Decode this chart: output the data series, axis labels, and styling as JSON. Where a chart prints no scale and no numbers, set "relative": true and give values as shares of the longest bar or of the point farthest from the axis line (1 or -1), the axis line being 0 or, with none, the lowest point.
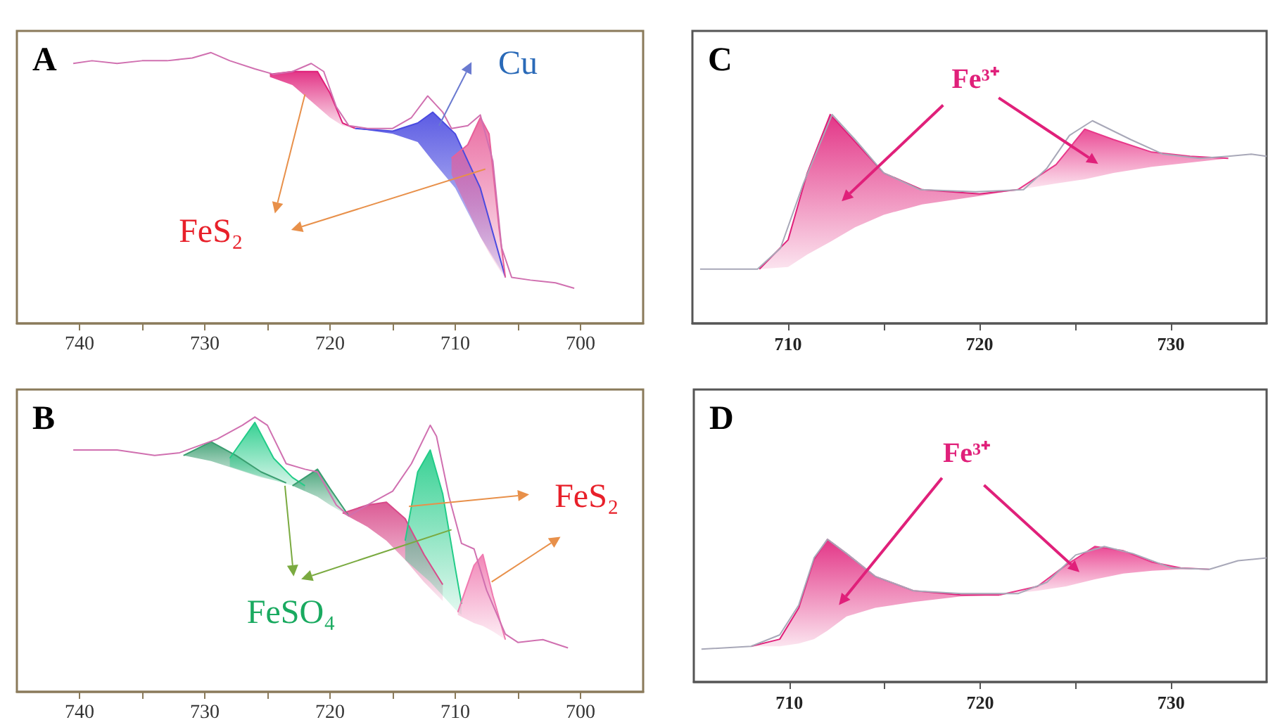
{
  "chart_data": [
    {
      "type": "line",
      "title": "A",
      "relative": true,
      "tick_labels": "x",
      "xlim": [
        745,
        695
      ],
      "xticks": [
        740,
        {
          "value": 735,
          "label": null
        },
        730,
        {
          "value": 725,
          "label": null
        },
        720,
        {
          "value": 715,
          "label": null
        },
        710,
        {
          "value": 705,
          "label": null
        },
        700
      ],
      "annotations": [
        "Cu",
        "FeS₂"
      ],
      "series": [
        {
          "type": "line",
          "color": "#e0207a",
          "x": [
            724.8,
            723,
            721,
            720,
            719,
            718
          ],
          "values": [
            0.92,
            0.93,
            0.93,
            0.85,
            0.74,
            0.72
          ],
          "upper": [
            0.92,
            0.93,
            0.93,
            0.85,
            0.74,
            0.72
          ],
          "lower": [
            0.91,
            0.88,
            0.8,
            0.76,
            0.73,
            0.72
          ]
        },
        {
          "type": "line",
          "color": "#4a4ae0",
          "x": [
            718,
            715,
            713,
            711.8,
            710,
            708,
            706
          ],
          "values": [
            0.72,
            0.71,
            0.74,
            0.78,
            0.7,
            0.5,
            0.17
          ],
          "upper": [
            0.72,
            0.71,
            0.74,
            0.78,
            0.7,
            0.5,
            0.17
          ],
          "lower": [
            0.72,
            0.7,
            0.67,
            0.6,
            0.5,
            0.32,
            0.17
          ]
        },
        {
          "type": "line",
          "color": "#e8609a",
          "x": [
            710.3,
            709,
            708,
            707.3,
            706.5,
            706
          ],
          "values": [
            0.61,
            0.66,
            0.76,
            0.7,
            0.35,
            0.17
          ],
          "upper": [
            0.61,
            0.66,
            0.76,
            0.7,
            0.35,
            0.17
          ],
          "lower": [
            0.55,
            0.42,
            0.32,
            0.26,
            0.2,
            0.17
          ]
        },
        {
          "type": "line",
          "color": "#d070b0",
          "x": [
            740.5,
            739,
            737,
            735,
            733,
            731,
            729.5,
            728,
            726,
            724.5,
            723,
            721.5,
            720.5,
            719.5,
            718.5,
            717,
            715,
            713.5,
            712.2,
            711,
            710.3,
            709,
            708,
            707,
            706.3,
            705.5,
            704,
            702,
            700.5
          ],
          "values": [
            0.96,
            0.97,
            0.96,
            0.97,
            0.97,
            0.98,
            1.0,
            0.97,
            0.94,
            0.92,
            0.93,
            0.96,
            0.93,
            0.8,
            0.73,
            0.72,
            0.72,
            0.76,
            0.84,
            0.78,
            0.72,
            0.73,
            0.77,
            0.6,
            0.28,
            0.17,
            0.16,
            0.15,
            0.13
          ]
        }
      ]
    },
    {
      "type": "line",
      "title": "C",
      "relative": true,
      "tick_labels": "x",
      "xlim": [
        705,
        735
      ],
      "xticks": [
        710,
        {
          "value": 715,
          "label": null
        },
        720,
        {
          "value": 725,
          "label": null
        },
        730
      ],
      "annotations": [
        "Fe³⁺"
      ],
      "series": [
        {
          "type": "line",
          "color": "#e0207a",
          "x": [
            708.5,
            710,
            711,
            712.2,
            713.5,
            715,
            717,
            720,
            722
          ],
          "values": [
            0.26,
            0.4,
            0.72,
            1.0,
            0.87,
            0.72,
            0.64,
            0.62,
            0.64
          ],
          "upper": [
            0.26,
            0.4,
            0.72,
            1.0,
            0.87,
            0.72,
            0.64,
            0.62,
            0.64
          ],
          "lower": [
            0.26,
            0.27,
            0.33,
            0.39,
            0.46,
            0.52,
            0.57,
            0.61,
            0.64
          ]
        },
        {
          "type": "line",
          "color": "#e8388a",
          "x": [
            722,
            724,
            725.5,
            727,
            729,
            731,
            733
          ],
          "values": [
            0.64,
            0.76,
            0.93,
            0.88,
            0.82,
            0.8,
            0.79
          ],
          "upper": [
            0.64,
            0.76,
            0.93,
            0.88,
            0.82,
            0.8,
            0.79
          ],
          "lower": [
            0.64,
            0.67,
            0.69,
            0.72,
            0.75,
            0.77,
            0.79
          ]
        },
        {
          "type": "line",
          "color": "#a8a8b8",
          "x": [
            705.4,
            708.4,
            709.6,
            710.8,
            712.3,
            713.5,
            715,
            716.9,
            719.8,
            722.3,
            723.5,
            724.7,
            725.9,
            727.9,
            729.6,
            731.5,
            733,
            734.2,
            735
          ],
          "values": [
            0.26,
            0.26,
            0.36,
            0.67,
            1.0,
            0.88,
            0.72,
            0.64,
            0.63,
            0.64,
            0.74,
            0.9,
            0.97,
            0.88,
            0.81,
            0.79,
            0.8,
            0.81,
            0.8
          ]
        }
      ]
    },
    {
      "type": "line",
      "title": "B",
      "relative": true,
      "tick_labels": "x",
      "xlim": [
        745,
        695
      ],
      "xticks": [
        740,
        {
          "value": 735,
          "label": null
        },
        730,
        {
          "value": 725,
          "label": null
        },
        720,
        {
          "value": 715,
          "label": null
        },
        710,
        {
          "value": 705,
          "label": null
        },
        700
      ],
      "annotations": [
        "FeS₂",
        "FeSO₄"
      ],
      "series": [
        {
          "type": "line",
          "color": "#3a9e70",
          "x": [
            731.7,
            729.5,
            727.5,
            725.5,
            723.5
          ],
          "values": [
            0.86,
            0.91,
            0.86,
            0.8,
            0.76
          ],
          "upper": [
            0.86,
            0.91,
            0.86,
            0.8,
            0.76
          ],
          "lower": [
            0.86,
            0.84,
            0.81,
            0.78,
            0.76
          ]
        },
        {
          "type": "line",
          "color": "#22cc88",
          "x": [
            728,
            726,
            724.5,
            723,
            722
          ],
          "values": [
            0.85,
            0.98,
            0.85,
            0.78,
            0.75
          ],
          "upper": [
            0.85,
            0.98,
            0.85,
            0.78,
            0.75
          ],
          "lower": [
            0.82,
            0.79,
            0.77,
            0.75,
            0.73
          ]
        },
        {
          "type": "line",
          "color": "#3a9e70",
          "x": [
            723,
            721,
            720,
            718.5
          ],
          "values": [
            0.75,
            0.81,
            0.74,
            0.64
          ],
          "upper": [
            0.75,
            0.81,
            0.74,
            0.64
          ],
          "lower": [
            0.75,
            0.71,
            0.68,
            0.64
          ]
        },
        {
          "type": "line",
          "color": "#d84a8a",
          "x": [
            719,
            717,
            715.5,
            714,
            712.5,
            711
          ],
          "values": [
            0.65,
            0.68,
            0.69,
            0.63,
            0.5,
            0.39
          ],
          "upper": [
            0.65,
            0.68,
            0.69,
            0.63,
            0.5,
            0.39
          ],
          "lower": [
            0.65,
            0.6,
            0.55,
            0.48,
            0.4,
            0.33
          ]
        },
        {
          "type": "line",
          "color": "#22cc88",
          "x": [
            714,
            713,
            712,
            711,
            710,
            709.5
          ],
          "values": [
            0.55,
            0.8,
            0.88,
            0.72,
            0.45,
            0.32
          ],
          "upper": [
            0.55,
            0.8,
            0.88,
            0.72,
            0.45,
            0.32
          ],
          "lower": [
            0.48,
            0.44,
            0.4,
            0.35,
            0.3,
            0.28
          ]
        },
        {
          "type": "line",
          "color": "#f07ab0",
          "x": [
            709.8,
            708.5,
            707.8,
            707,
            706
          ],
          "values": [
            0.29,
            0.46,
            0.5,
            0.35,
            0.19
          ],
          "upper": [
            0.29,
            0.46,
            0.5,
            0.35,
            0.19
          ],
          "lower": [
            0.28,
            0.25,
            0.24,
            0.22,
            0.19
          ]
        },
        {
          "type": "line",
          "color": "#d070b0",
          "x": [
            740.5,
            737,
            734,
            732,
            729,
            727,
            726,
            725,
            723.5,
            722,
            721,
            719.5,
            718.5,
            717,
            715,
            713.5,
            712,
            711.5,
            710.5,
            709.5,
            708.5,
            707.5,
            706,
            705,
            703,
            701
          ],
          "values": [
            0.88,
            0.88,
            0.86,
            0.87,
            0.92,
            0.97,
            1.0,
            0.97,
            0.83,
            0.81,
            0.8,
            0.68,
            0.64,
            0.68,
            0.73,
            0.83,
            0.97,
            0.93,
            0.71,
            0.54,
            0.52,
            0.37,
            0.21,
            0.18,
            0.19,
            0.16
          ]
        }
      ]
    },
    {
      "type": "line",
      "title": "D",
      "relative": true,
      "tick_labels": "x",
      "xlim": [
        705,
        735
      ],
      "xticks": [
        710,
        {
          "value": 715,
          "label": null
        },
        720,
        {
          "value": 725,
          "label": null
        },
        730
      ],
      "annotations": [
        "Fe³⁺"
      ],
      "series": [
        {
          "type": "line",
          "color": "#e0207a",
          "x": [
            708,
            709.5,
            710.5,
            711.3,
            712,
            713,
            714.5,
            716.5,
            719,
            721
          ],
          "values": [
            0.25,
            0.3,
            0.52,
            0.86,
            1.0,
            0.9,
            0.74,
            0.64,
            0.61,
            0.61
          ],
          "upper": [
            0.25,
            0.3,
            0.52,
            0.86,
            1.0,
            0.9,
            0.74,
            0.64,
            0.61,
            0.61
          ],
          "lower": [
            0.25,
            0.25,
            0.27,
            0.3,
            0.36,
            0.46,
            0.52,
            0.56,
            0.6,
            0.61
          ]
        },
        {
          "type": "line",
          "color": "#e8388a",
          "x": [
            721,
            723,
            724.5,
            726,
            727.5,
            729,
            730.5,
            732
          ],
          "values": [
            0.61,
            0.67,
            0.82,
            0.95,
            0.92,
            0.84,
            0.8,
            0.79
          ],
          "upper": [
            0.61,
            0.67,
            0.82,
            0.95,
            0.92,
            0.84,
            0.8,
            0.79
          ],
          "lower": [
            0.61,
            0.64,
            0.67,
            0.72,
            0.76,
            0.78,
            0.79,
            0.79
          ]
        },
        {
          "type": "line",
          "color": "#a8a8b8",
          "x": [
            705.4,
            708,
            709.5,
            710.5,
            711.3,
            712,
            713,
            714.5,
            716.5,
            719,
            722,
            723.5,
            725,
            726.5,
            728,
            730,
            732,
            733.5,
            735
          ],
          "values": [
            0.23,
            0.25,
            0.33,
            0.54,
            0.87,
            1.0,
            0.9,
            0.74,
            0.64,
            0.62,
            0.62,
            0.7,
            0.89,
            0.95,
            0.9,
            0.8,
            0.79,
            0.85,
            0.87
          ]
        }
      ]
    }
  ]
}
